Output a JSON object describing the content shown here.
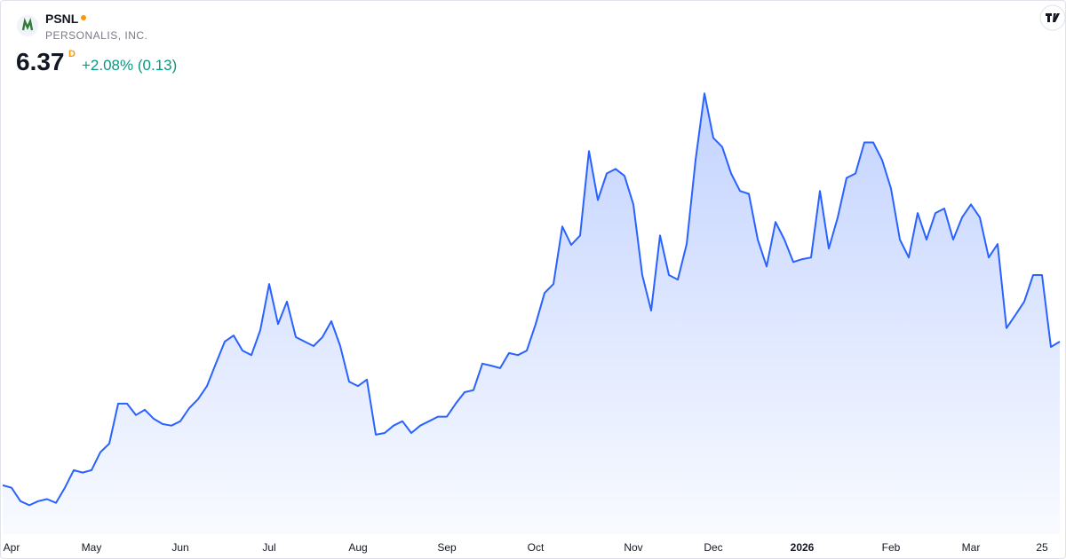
{
  "header": {
    "ticker": "PSNL",
    "company": "PERSONALIS, INC.",
    "price": "6.37",
    "interval": "D",
    "change": "+2.08% (0.13)"
  },
  "chart_data": {
    "type": "area",
    "color": "#2962ff",
    "categories": [
      null,
      "Apr",
      null,
      null,
      null,
      null,
      null,
      null,
      null,
      null,
      "May",
      null,
      null,
      null,
      null,
      null,
      null,
      null,
      null,
      null,
      "Jun",
      null,
      null,
      null,
      null,
      null,
      null,
      null,
      null,
      null,
      "Jul",
      null,
      null,
      null,
      null,
      null,
      null,
      null,
      null,
      null,
      "Aug",
      null,
      null,
      null,
      null,
      null,
      null,
      null,
      null,
      null,
      "Sep",
      null,
      null,
      null,
      null,
      null,
      null,
      null,
      null,
      null,
      "Oct",
      null,
      null,
      null,
      null,
      null,
      null,
      null,
      null,
      null,
      null,
      "Nov",
      null,
      null,
      null,
      null,
      null,
      null,
      null,
      null,
      "Dec",
      null,
      null,
      null,
      null,
      null,
      null,
      null,
      null,
      null,
      "2026",
      null,
      null,
      null,
      null,
      null,
      null,
      null,
      null,
      null,
      "Feb",
      null,
      null,
      null,
      null,
      null,
      null,
      null,
      null,
      "Mar",
      null,
      null,
      null,
      null,
      null,
      null,
      null,
      "25",
      null,
      null
    ],
    "values": [
      2.85,
      2.79,
      2.46,
      2.36,
      2.46,
      2.51,
      2.42,
      2.79,
      3.22,
      3.16,
      3.22,
      3.66,
      3.87,
      4.85,
      4.85,
      4.57,
      4.7,
      4.48,
      4.35,
      4.31,
      4.42,
      4.74,
      4.96,
      5.28,
      5.83,
      6.37,
      6.52,
      6.15,
      6.04,
      6.65,
      7.78,
      6.8,
      7.35,
      6.48,
      6.37,
      6.26,
      6.48,
      6.87,
      6.26,
      5.39,
      5.28,
      5.44,
      4.09,
      4.13,
      4.31,
      4.42,
      4.13,
      4.31,
      4.42,
      4.53,
      4.53,
      4.85,
      5.13,
      5.18,
      5.83,
      5.78,
      5.72,
      6.09,
      6.04,
      6.15,
      6.8,
      7.56,
      7.78,
      9.19,
      8.74,
      8.97,
      11.04,
      9.84,
      10.49,
      10.6,
      10.43,
      9.73,
      8.0,
      7.13,
      8.97,
      8.0,
      7.89,
      8.76,
      10.82,
      12.45,
      11.36,
      11.14,
      10.49,
      10.06,
      9.99,
      8.87,
      8.21,
      9.3,
      8.87,
      8.32,
      8.39,
      8.43,
      10.06,
      8.65,
      9.41,
      10.38,
      10.49,
      11.25,
      11.25,
      10.82,
      10.12,
      8.87,
      8.43,
      9.52,
      8.87,
      9.52,
      9.63,
      8.87,
      9.41,
      9.73,
      9.41,
      8.43,
      8.76,
      6.7,
      7.02,
      7.35,
      8.0,
      8.0,
      6.24,
      6.37
    ],
    "ylim": [
      1.5,
      13
    ]
  }
}
